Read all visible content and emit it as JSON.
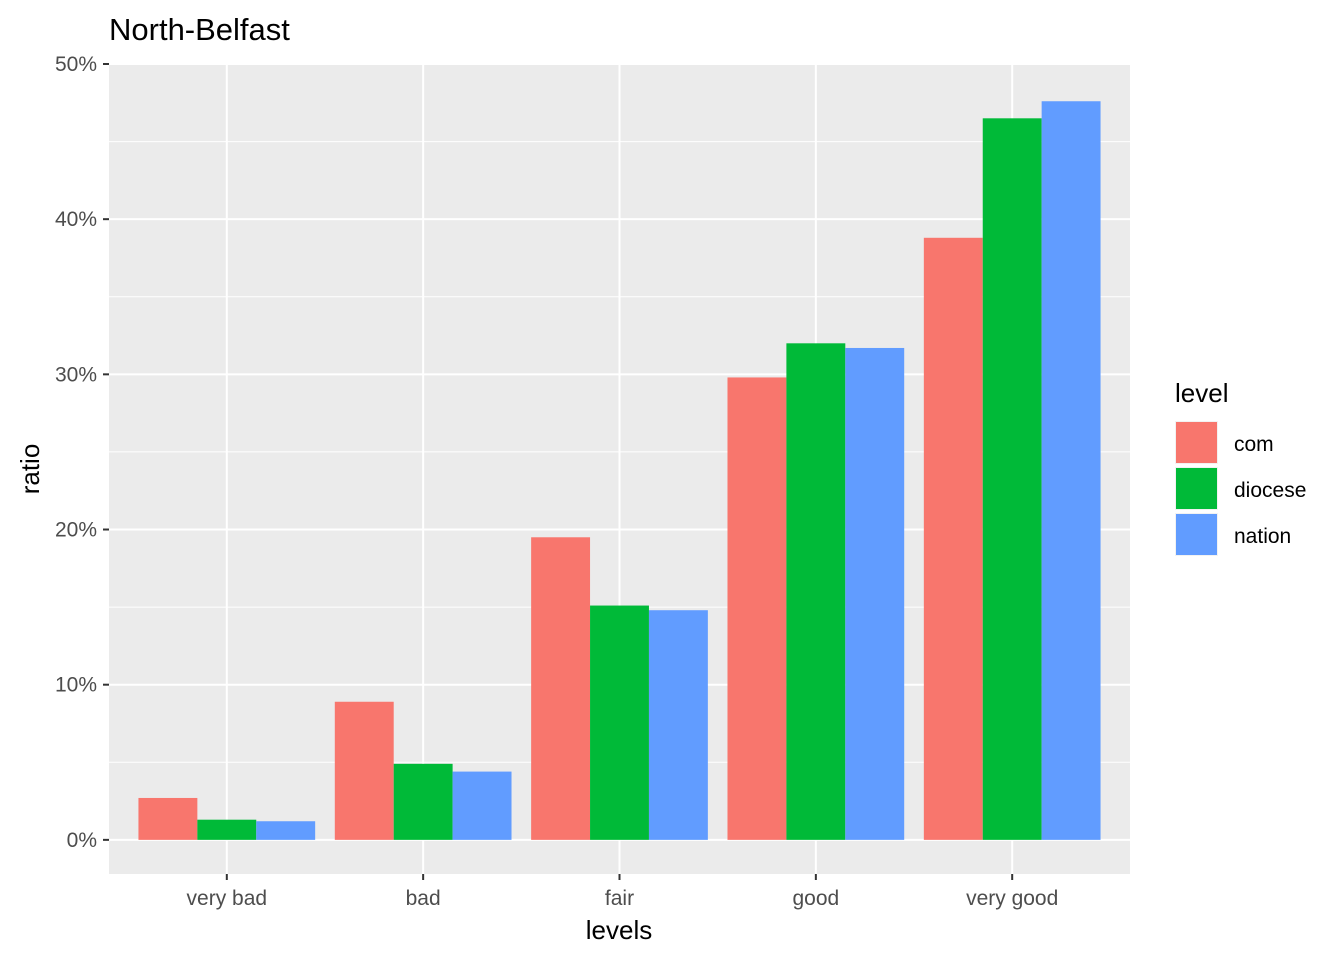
{
  "chart_data": {
    "type": "bar",
    "title": "North-Belfast",
    "xlabel": "levels",
    "ylabel": "ratio",
    "categories": [
      "very bad",
      "bad",
      "fair",
      "good",
      "very good"
    ],
    "series": [
      {
        "name": "com",
        "values": [
          0.027,
          0.089,
          0.195,
          0.298,
          0.388
        ]
      },
      {
        "name": "diocese",
        "values": [
          0.013,
          0.049,
          0.151,
          0.32,
          0.465
        ]
      },
      {
        "name": "nation",
        "values": [
          0.012,
          0.044,
          0.148,
          0.317,
          0.476
        ]
      }
    ],
    "ylim": [
      -0.022,
      0.5
    ],
    "yticks": [
      0,
      0.1,
      0.2,
      0.3,
      0.4,
      0.5
    ],
    "ytick_labels": [
      "0%",
      "10%",
      "20%",
      "30%",
      "40%",
      "50%"
    ],
    "grid": true,
    "legend": {
      "title": "level",
      "position": "right"
    },
    "colors": {
      "com": "#F8766D",
      "diocese": "#00BA38",
      "nation": "#619CFF",
      "panel": "#EBEBEB",
      "grid": "#FFFFFF"
    }
  }
}
